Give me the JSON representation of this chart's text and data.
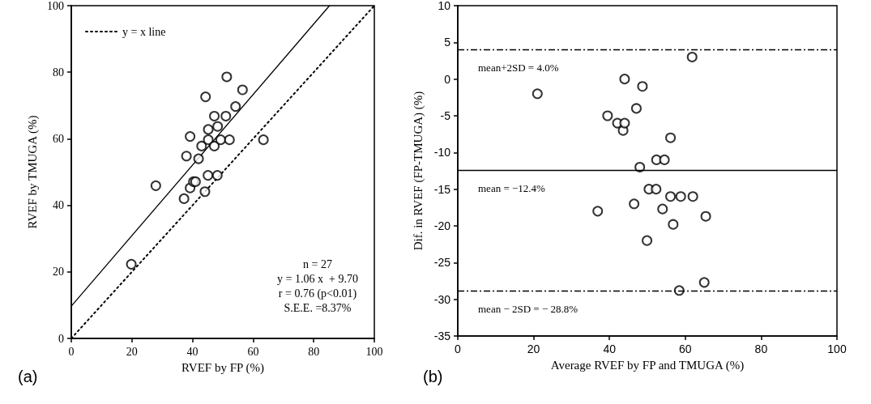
{
  "chart_data": [
    {
      "type": "scatter",
      "xlabel": "RVEF by FP (%)",
      "ylabel": "RVEF by TMUGA (%)",
      "xlim": [
        0,
        100
      ],
      "xticks": [
        0,
        20,
        40,
        60,
        80,
        100
      ],
      "ylim": [
        0,
        100
      ],
      "yticks": [
        0,
        20,
        40,
        60,
        80,
        100
      ],
      "grid": false,
      "legend": "top left",
      "marker": "circle",
      "series": [
        {
          "type": "scatter",
          "color": "#000000",
          "x": [
            19.8,
            27.9,
            37.2,
            38.0,
            39.2,
            39.2,
            40.3,
            41.0,
            42.0,
            43.0,
            44.1,
            44.3,
            45.1,
            45.2,
            45.2,
            47.2,
            47.2,
            48.2,
            48.3,
            49.3,
            51.0,
            51.3,
            52.2,
            54.2,
            56.5,
            63.4
          ],
          "values": [
            22.3,
            45.9,
            42.0,
            54.8,
            60.7,
            45.2,
            47.1,
            47.1,
            54.0,
            57.8,
            44.1,
            72.6,
            49.0,
            59.7,
            62.8,
            57.8,
            66.8,
            49.0,
            63.7,
            59.7,
            66.8,
            78.6,
            59.7,
            69.7,
            74.7,
            59.7
          ]
        },
        {
          "type": "line",
          "color": "#000000",
          "x": [
            0,
            85.2
          ],
          "values": [
            9.7,
            100
          ],
          "line_style": "solid",
          "marker": "none"
        },
        {
          "type": "line",
          "name": "y = x line",
          "color": "#000000",
          "x": [
            0,
            100
          ],
          "values": [
            0,
            100
          ],
          "line_style": "dotted",
          "marker": "none"
        }
      ],
      "annotations": [
        "n = 27",
        "y = 1.06 x  + 9.70",
        "r = 0.76 (p<0.01)",
        "S.E.E. =8.37%",
        "(a)"
      ]
    },
    {
      "type": "scatter",
      "xlabel": "Average RVEF by FP and TMUGA (%)",
      "ylabel": "Dif. in RVEF (FP-TMUGA) (%)",
      "xlim": [
        0,
        100
      ],
      "xticks": [
        0,
        20,
        40,
        60,
        80,
        100
      ],
      "ylim": [
        -35,
        10
      ],
      "yticks": [
        -35,
        -30,
        -25,
        -20,
        -15,
        -10,
        -5,
        0,
        5,
        10
      ],
      "grid": false,
      "legend": false,
      "marker": "circle",
      "series": [
        {
          "type": "scatter",
          "color": "#000000",
          "x": [
            21.0,
            36.9,
            39.5,
            42.1,
            43.6,
            44.0,
            44.0,
            46.5,
            47.1,
            48.0,
            48.7,
            49.9,
            50.4,
            52.3,
            52.4,
            54.0,
            54.5,
            56.1,
            56.1,
            56.8,
            58.4,
            58.8,
            61.8,
            62.0,
            65.0,
            65.4
          ],
          "values": [
            -2.0,
            -18.0,
            -5.0,
            -6.0,
            -7.0,
            -6.0,
            0.0,
            -17.0,
            -4.0,
            -12.0,
            -1.0,
            -22.0,
            -15.0,
            -15.0,
            -11.0,
            -17.7,
            -11.0,
            -8.0,
            -16.0,
            -19.8,
            -28.8,
            -16.0,
            3.0,
            -16.0,
            -27.7,
            -18.7
          ]
        }
      ],
      "ref_lines": [
        {
          "axis": "y",
          "value": 4.0,
          "label": "mean+2SD = 4.0%",
          "color": "#000000",
          "line_style": "dashed"
        },
        {
          "axis": "y",
          "value": -12.4,
          "label": "mean = −12.4%",
          "color": "#000000",
          "line_style": "solid"
        },
        {
          "axis": "y",
          "value": -28.8,
          "label": "mean − 2SD = − 28.8%",
          "color": "#000000",
          "line_style": "dashed"
        }
      ],
      "annotations": [
        "(b)"
      ]
    }
  ]
}
